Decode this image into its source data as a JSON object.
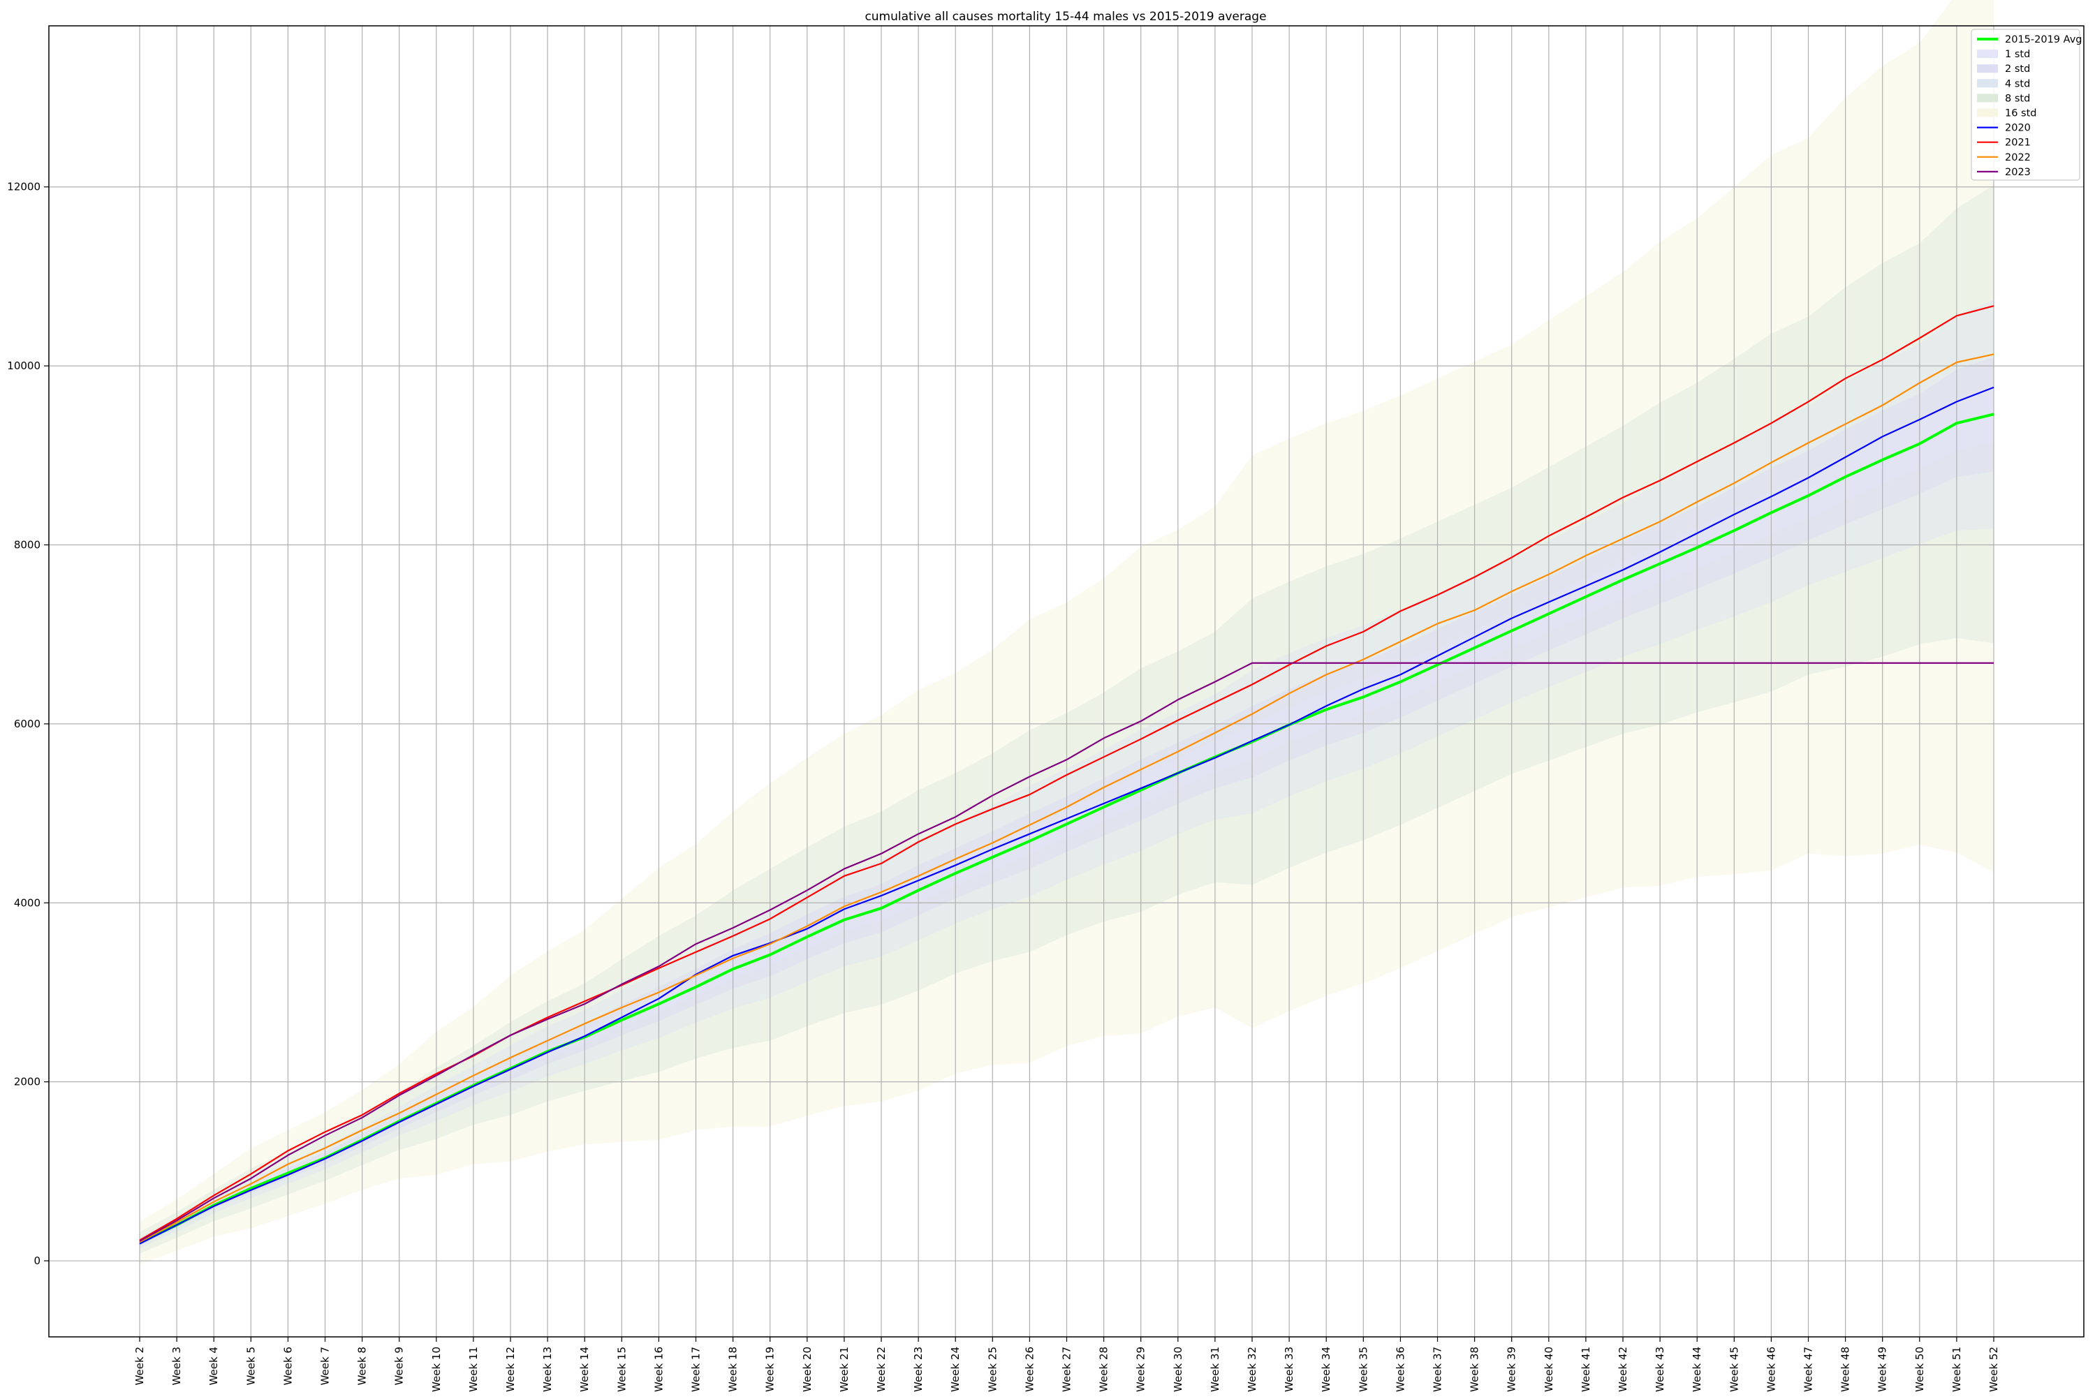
{
  "chart_data": {
    "type": "line",
    "title": "cumulative all causes mortality 15-44 males vs 2015-2019 average",
    "xlabel": "",
    "ylabel": "",
    "ylim": [
      -850,
      13800
    ],
    "yticks": [
      0,
      2000,
      4000,
      6000,
      8000,
      10000,
      12000
    ],
    "grid": true,
    "legend_position": "top-right",
    "categories": [
      "Week 2",
      "Week 3",
      "Week 4",
      "Week 5",
      "Week 6",
      "Week 7",
      "Week 8",
      "Week 9",
      "Week 10",
      "Week 11",
      "Week 12",
      "Week 13",
      "Week 14",
      "Week 15",
      "Week 16",
      "Week 17",
      "Week 18",
      "Week 19",
      "Week 20",
      "Week 21",
      "Week 22",
      "Week 23",
      "Week 24",
      "Week 25",
      "Week 26",
      "Week 27",
      "Week 28",
      "Week 29",
      "Week 30",
      "Week 31",
      "Week 32",
      "Week 33",
      "Week 34",
      "Week 35",
      "Week 36",
      "Week 37",
      "Week 38",
      "Week 39",
      "Week 40",
      "Week 41",
      "Week 42",
      "Week 43",
      "Week 44",
      "Week 45",
      "Week 46",
      "Week 47",
      "Week 48",
      "Week 49",
      "Week 50",
      "Week 51",
      "Week 52"
    ],
    "avg": {
      "name": "2015-2019 Avg",
      "color": "#00ff00",
      "values": [
        200,
        400,
        620,
        810,
        980,
        1150,
        1350,
        1560,
        1760,
        1960,
        2150,
        2340,
        2500,
        2690,
        2870,
        3060,
        3260,
        3420,
        3620,
        3810,
        3940,
        4140,
        4330,
        4510,
        4690,
        4880,
        5070,
        5260,
        5450,
        5630,
        5800,
        5990,
        6160,
        6300,
        6470,
        6660,
        6850,
        7040,
        7230,
        7420,
        7610,
        7790,
        7970,
        8160,
        8360,
        8550,
        8760,
        8950,
        9130,
        9360,
        9460
      ]
    },
    "bands": [
      {
        "name": "1 std",
        "sigma": 1,
        "color": "#e4e4f8",
        "opacity": 0.5
      },
      {
        "name": "2 std",
        "sigma": 2,
        "color": "#dcdcf2",
        "opacity": 0.45
      },
      {
        "name": "4 std",
        "sigma": 4,
        "color": "#dde5f1",
        "opacity": 0.45
      },
      {
        "name": "8 std",
        "sigma": 8,
        "color": "#dceadc",
        "opacity": 0.45
      },
      {
        "name": "16 std",
        "sigma": 16,
        "color": "#f6f6e2",
        "opacity": 0.55
      }
    ],
    "band_std": [
      15,
      18,
      22,
      28,
      30,
      32,
      35,
      40,
      50,
      55,
      65,
      70,
      75,
      85,
      95,
      100,
      110,
      120,
      125,
      130,
      135,
      140,
      140,
      145,
      155,
      155,
      160,
      170,
      170,
      175,
      200,
      200,
      200,
      200,
      200,
      200,
      200,
      200,
      205,
      210,
      215,
      225,
      230,
      240,
      250,
      250,
      265,
      275,
      280,
      300,
      320
    ],
    "series": [
      {
        "name": "2020",
        "color": "#0000ff",
        "values": [
          190,
          400,
          610,
          790,
          960,
          1140,
          1340,
          1550,
          1750,
          1950,
          2140,
          2330,
          2510,
          2720,
          2930,
          3200,
          3410,
          3550,
          3710,
          3930,
          4080,
          4250,
          4420,
          4600,
          4770,
          4940,
          5110,
          5280,
          5450,
          5620,
          5810,
          5990,
          6200,
          6390,
          6550,
          6760,
          6970,
          7180,
          7360,
          7540,
          7720,
          7920,
          8130,
          8340,
          8540,
          8750,
          8980,
          9210,
          9400,
          9600,
          9760
        ]
      },
      {
        "name": "2021",
        "color": "#ff0000",
        "values": [
          230,
          470,
          730,
          970,
          1230,
          1440,
          1630,
          1870,
          2090,
          2290,
          2520,
          2720,
          2900,
          3080,
          3270,
          3450,
          3630,
          3820,
          4060,
          4300,
          4440,
          4680,
          4880,
          5050,
          5210,
          5430,
          5630,
          5830,
          6040,
          6240,
          6440,
          6660,
          6870,
          7030,
          7260,
          7440,
          7640,
          7860,
          8100,
          8310,
          8530,
          8720,
          8930,
          9140,
          9360,
          9600,
          9860,
          10070,
          10310,
          10560,
          10670
        ]
      },
      {
        "name": "2022",
        "color": "#ff8c00",
        "values": [
          210,
          430,
          660,
          860,
          1080,
          1260,
          1460,
          1650,
          1860,
          2070,
          2270,
          2460,
          2650,
          2830,
          3000,
          3190,
          3380,
          3540,
          3740,
          3960,
          4120,
          4300,
          4490,
          4670,
          4870,
          5070,
          5290,
          5490,
          5690,
          5900,
          6110,
          6340,
          6550,
          6720,
          6920,
          7120,
          7270,
          7480,
          7670,
          7880,
          8070,
          8260,
          8480,
          8690,
          8920,
          9140,
          9350,
          9560,
          9810,
          10040,
          10130
        ]
      },
      {
        "name": "2023",
        "color": "#800080",
        "values": [
          220,
          450,
          700,
          920,
          1180,
          1400,
          1600,
          1850,
          2070,
          2300,
          2520,
          2700,
          2870,
          3090,
          3290,
          3540,
          3720,
          3920,
          4140,
          4380,
          4550,
          4770,
          4960,
          5200,
          5410,
          5600,
          5840,
          6030,
          6270,
          6470,
          6680,
          6680,
          6680,
          6680,
          6680,
          6680,
          6680,
          6680,
          6680,
          6680,
          6680,
          6680,
          6680,
          6680,
          6680,
          6680,
          6680,
          6680,
          6680,
          6680,
          6680
        ]
      }
    ]
  }
}
